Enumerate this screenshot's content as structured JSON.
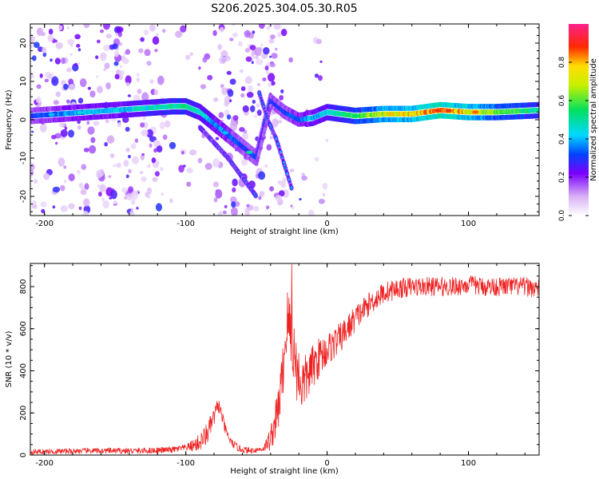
{
  "title": "S206.2025.304.05.30.R05",
  "chart_data": [
    {
      "type": "heatmap",
      "title": "S206.2025.304.05.30.R05",
      "xlabel": "Height of straight line (km)",
      "ylabel": "Frequency (Hz)",
      "xlim": [
        -210,
        150
      ],
      "ylim": [
        -25,
        25
      ],
      "xticks": [
        -200,
        -100,
        0,
        100
      ],
      "yticks": [
        -20,
        -10,
        0,
        10,
        20
      ],
      "colorbar": {
        "label": "Normalized spectral amplitude",
        "range": [
          0.0,
          1.0
        ],
        "ticks": [
          "0.0",
          "0.2",
          "0.4",
          "0.6",
          "0.8"
        ],
        "tick_values": [
          0.0,
          0.2,
          0.4,
          0.6,
          0.8
        ]
      },
      "ridge": {
        "x": [
          -210,
          -190,
          -170,
          -150,
          -130,
          -110,
          -100,
          -90,
          -80,
          -70,
          -60,
          -50,
          -40,
          -30,
          -20,
          -10,
          0,
          20,
          40,
          60,
          80,
          100,
          120,
          150
        ],
        "y": [
          1,
          1.5,
          2,
          2.5,
          3,
          3.5,
          3.5,
          2,
          -1,
          -4,
          -7,
          -10,
          5,
          2,
          0,
          0.5,
          2,
          1,
          1.5,
          1.5,
          2.5,
          2,
          2,
          2.5
        ],
        "amplitude": [
          0.3,
          0.35,
          0.4,
          0.4,
          0.45,
          0.5,
          0.5,
          0.45,
          0.4,
          0.35,
          0.3,
          0.3,
          0.3,
          0.3,
          0.35,
          0.4,
          0.45,
          0.55,
          0.7,
          0.75,
          0.85,
          0.75,
          0.6,
          0.5
        ]
      },
      "secondary_branch": {
        "x": [
          -90,
          -80,
          -70,
          -60,
          -50
        ],
        "y": [
          -2,
          -6,
          -10,
          -15,
          -20
        ]
      },
      "tertiary_branch": {
        "x": [
          -48,
          -42,
          -36,
          -30,
          -25
        ],
        "y": [
          7,
          0,
          -5,
          -12,
          -18
        ]
      }
    },
    {
      "type": "line",
      "xlabel": "Height of straight line (km)",
      "ylabel": "SNR (10 * v/v)",
      "xlim": [
        -210,
        150
      ],
      "ylim": [
        0,
        910
      ],
      "xticks": [
        -200,
        -100,
        0,
        100
      ],
      "yticks": [
        0,
        200,
        400,
        600,
        800
      ],
      "color": "#ee2222",
      "envelope": {
        "x": [
          -210,
          -170,
          -130,
          -110,
          -100,
          -95,
          -90,
          -85,
          -80,
          -77,
          -75,
          -72,
          -68,
          -62,
          -55,
          -45,
          -40,
          -35,
          -32,
          -30,
          -28,
          -25,
          -22,
          -18,
          -15,
          -10,
          -5,
          0,
          10,
          20,
          30,
          40,
          50,
          60,
          70,
          80,
          90,
          100,
          110,
          120,
          130,
          140,
          150
        ],
        "y": [
          15,
          20,
          20,
          25,
          35,
          45,
          60,
          100,
          180,
          240,
          200,
          120,
          60,
          30,
          20,
          30,
          80,
          200,
          350,
          500,
          650,
          560,
          420,
          330,
          360,
          420,
          470,
          500,
          560,
          650,
          720,
          770,
          790,
          800,
          800,
          800,
          800,
          810,
          800,
          800,
          800,
          800,
          790
        ]
      },
      "noise_amplitude": {
        "x": [
          -210,
          -100,
          -85,
          -70,
          -45,
          -35,
          -25,
          -15,
          0,
          30,
          60,
          150
        ],
        "y": [
          12,
          15,
          55,
          20,
          12,
          110,
          170,
          120,
          80,
          55,
          45,
          45
        ]
      },
      "peak": {
        "x": -25,
        "y": 905
      }
    }
  ]
}
